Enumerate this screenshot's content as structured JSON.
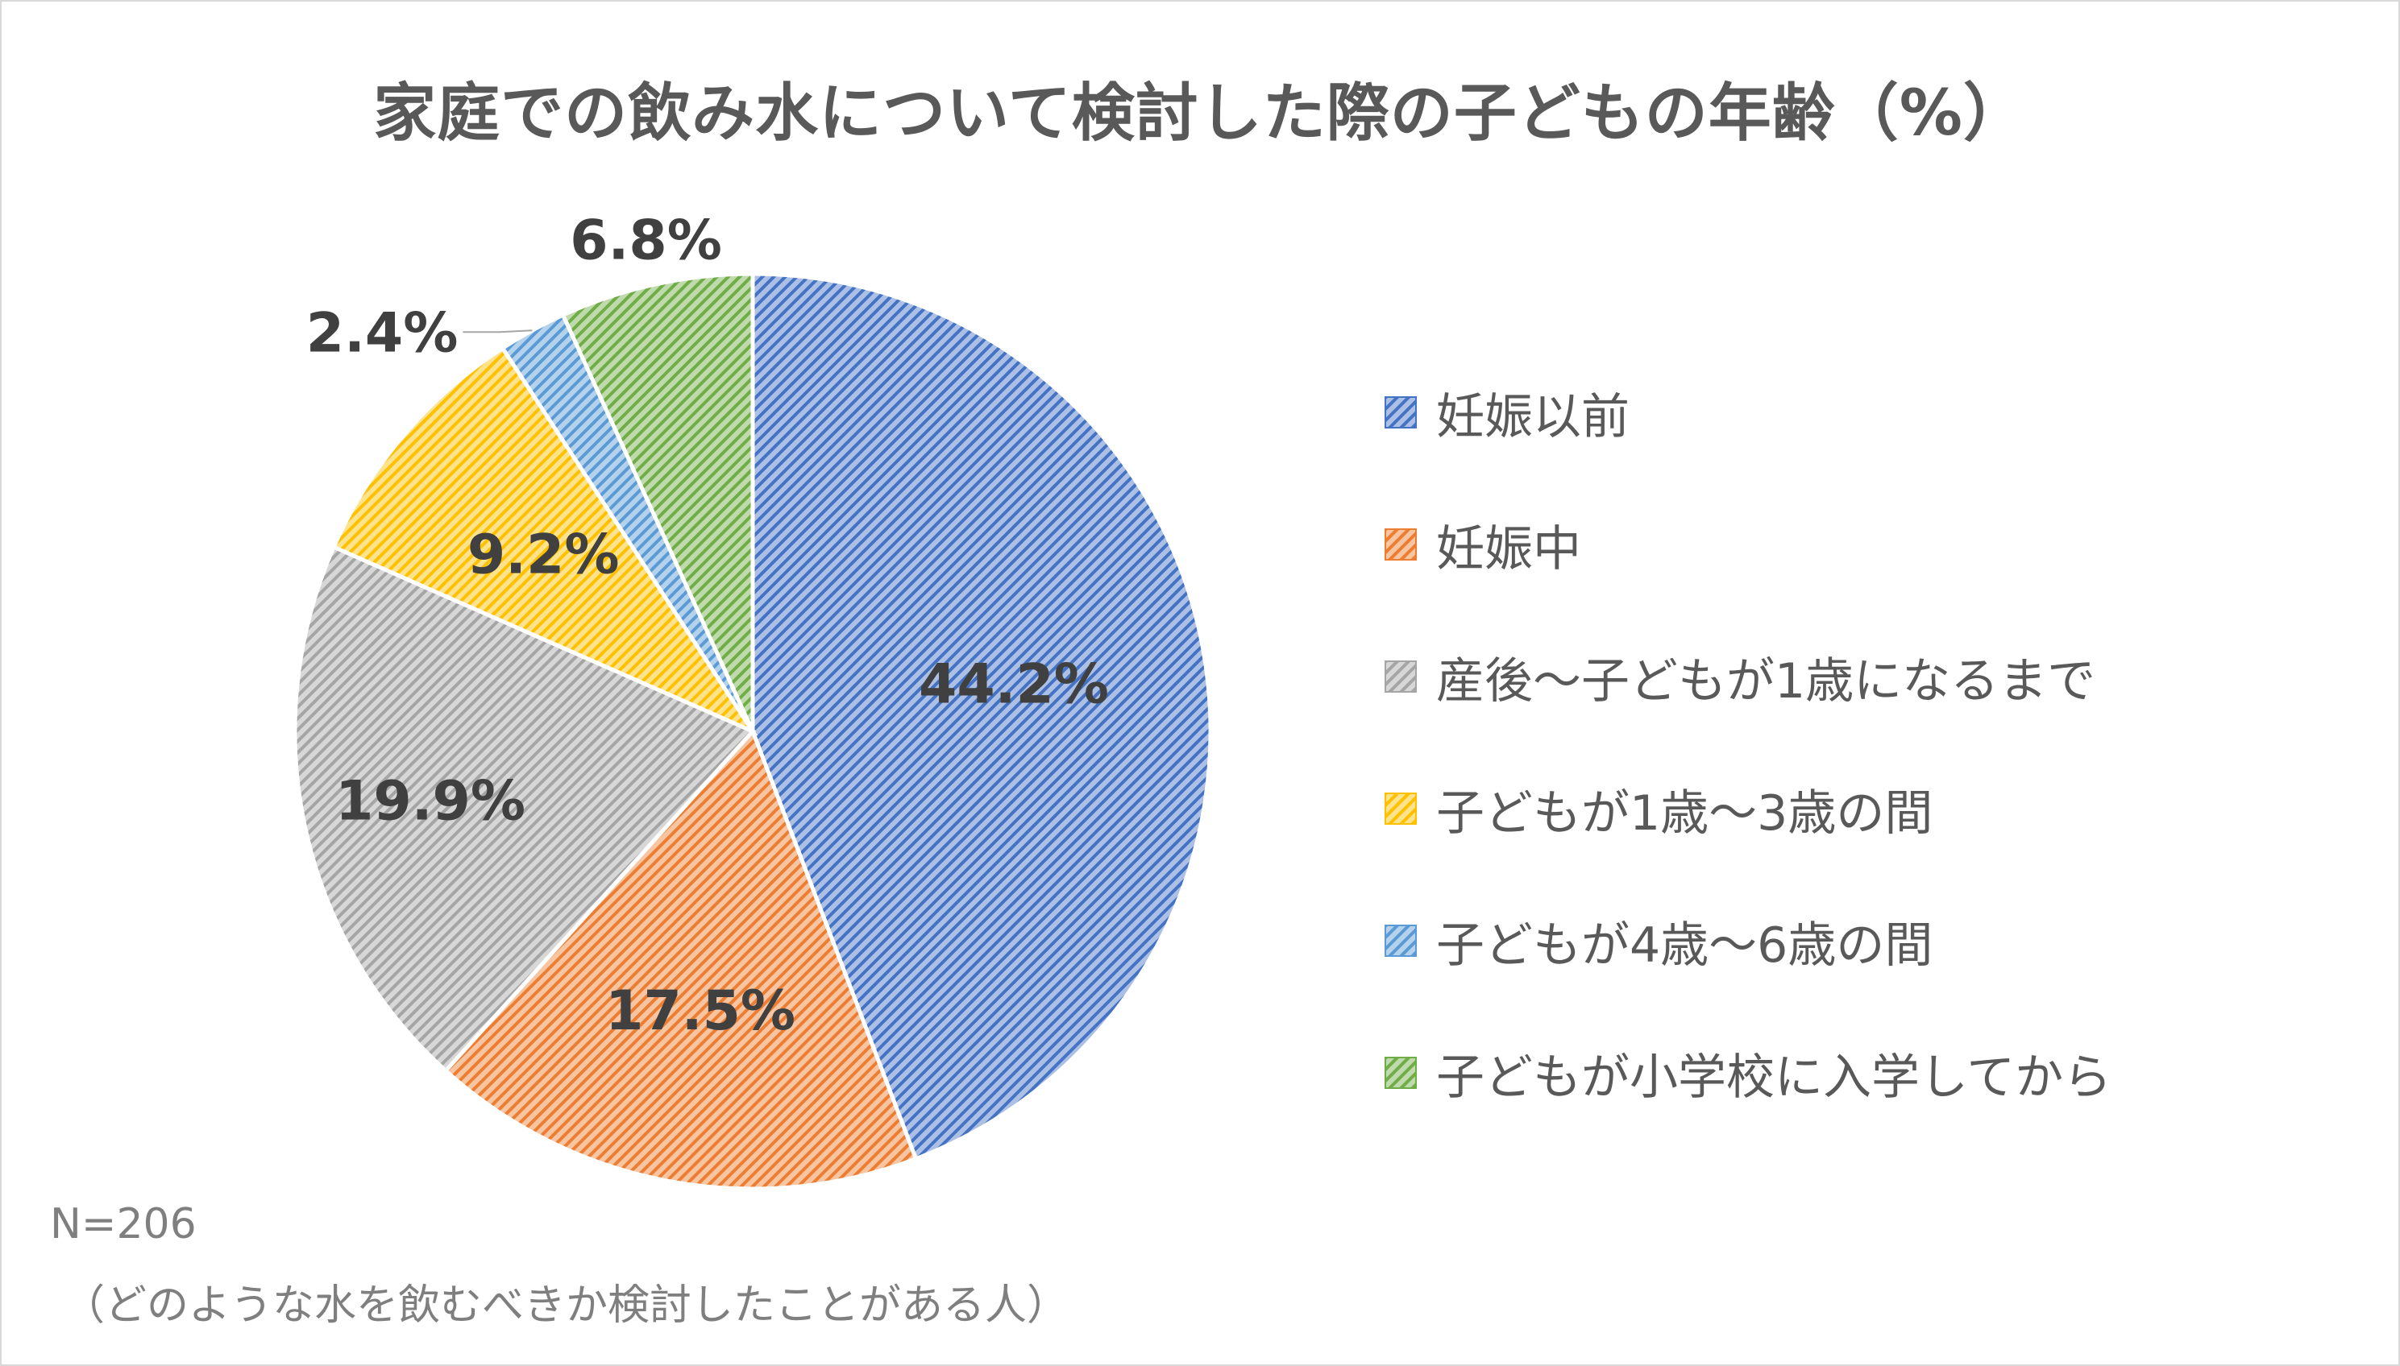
{
  "chart_data": {
    "type": "pie",
    "title": "家庭での飲み水について検討した際の子どもの年齢（%）",
    "categories": [
      "妊娠以前",
      "妊娠中",
      "産後～子どもが1歳になるまで",
      "子どもが1歳～3歳の間",
      "子どもが4歳～6歳の間",
      "子どもが小学校に入学してから"
    ],
    "values": [
      44.2,
      17.5,
      19.9,
      9.2,
      2.4,
      6.8
    ],
    "value_labels": [
      "44.2%",
      "17.5%",
      "19.9%",
      "9.2%",
      "2.4%",
      "6.8%"
    ],
    "colors": [
      "#4472C4",
      "#ED7D31",
      "#A5A5A5",
      "#FFC000",
      "#5B9BD5",
      "#70AD47"
    ],
    "fill_pattern": "diagonal-hatch",
    "legend": "right"
  },
  "notes": {
    "sample_size": "N=206",
    "respondents": "（どのような水を飲むべきか検討したことがある人）"
  }
}
